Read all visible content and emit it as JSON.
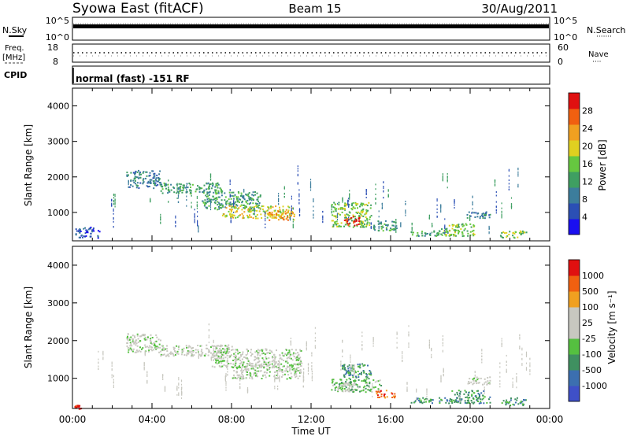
{
  "header": {
    "station": "Syowa East (fitACF)",
    "beam": "Beam 15",
    "date": "30/Aug/2011"
  },
  "small_panels": {
    "nsky_label": "N.Sky",
    "nsearch_label": "N.Search",
    "nsearch_dots": "·······",
    "nsky_ticks": [
      "10^5",
      "10^0"
    ],
    "nsearch_ticks": [
      "10^5",
      "10^0"
    ],
    "freq_label_1": "Freq.",
    "freq_label_2": "[MHz]",
    "freq_ticks": [
      "18",
      "8"
    ],
    "nave_label": "Nave",
    "nave_dots": "····",
    "nave_ticks": [
      "60",
      "0"
    ],
    "cpid_label": "CPID",
    "cpid_text": "normal (fast) -151 RF"
  },
  "chart_data": [
    {
      "type": "heatmap",
      "name": "power",
      "ylabel": "Slant Range [km]",
      "ylim": [
        200,
        4500
      ],
      "yticks": [
        "4000",
        "3000",
        "2000",
        "1000"
      ],
      "xlim_hours": [
        0,
        24
      ],
      "colorbar_label": "Power [dB]",
      "colorbar_ticks": [
        "28",
        "24",
        "20",
        "16",
        "12",
        "8",
        "4"
      ],
      "colors": [
        "#1a0ff0",
        "#2b4fb5",
        "#3c7d9c",
        "#3f9f62",
        "#66c840",
        "#e0d020",
        "#f0a020",
        "#f06010",
        "#e01010"
      ],
      "echo_regions": [
        {
          "t": [
            2.7,
            4.4
          ],
          "r": [
            1700,
            2200
          ],
          "level": 2
        },
        {
          "t": [
            4.4,
            7.5
          ],
          "r": [
            1550,
            1850
          ],
          "level": 3
        },
        {
          "t": [
            6.5,
            9.5
          ],
          "r": [
            1100,
            1600
          ],
          "level": 3
        },
        {
          "t": [
            7.5,
            11.0
          ],
          "r": [
            850,
            1200
          ],
          "level": 5
        },
        {
          "t": [
            9.8,
            11.2
          ],
          "r": [
            800,
            1050
          ],
          "level": 6
        },
        {
          "t": [
            13.0,
            15.0
          ],
          "r": [
            600,
            1300
          ],
          "level": 4
        },
        {
          "t": [
            13.6,
            14.4
          ],
          "r": [
            650,
            900
          ],
          "level": 8
        },
        {
          "t": [
            15.0,
            16.3
          ],
          "r": [
            500,
            800
          ],
          "level": 3
        },
        {
          "t": [
            17.0,
            19.0
          ],
          "r": [
            350,
            500
          ],
          "level": 3
        },
        {
          "t": [
            18.5,
            20.2
          ],
          "r": [
            350,
            700
          ],
          "level": 4
        },
        {
          "t": [
            19.8,
            21.0
          ],
          "r": [
            850,
            1050
          ],
          "level": 2
        },
        {
          "t": [
            21.5,
            22.8
          ],
          "r": [
            300,
            500
          ],
          "level": 4
        },
        {
          "t": [
            0.1,
            1.4
          ],
          "r": [
            300,
            600
          ],
          "level": 1
        }
      ]
    },
    {
      "type": "heatmap",
      "name": "velocity",
      "ylabel": "Slant Range [km]",
      "ylim": [
        200,
        4500
      ],
      "yticks": [
        "4000",
        "3000",
        "2000",
        "1000"
      ],
      "xlim_hours": [
        0,
        24
      ],
      "xticks": [
        "00:00",
        "04:00",
        "08:00",
        "12:00",
        "16:00",
        "20:00",
        "00:00"
      ],
      "xlabel": "Time UT",
      "colorbar_label": "Velocity [m s⁻¹]",
      "colorbar_ticks": [
        "1000",
        "500",
        "100",
        "25",
        "-25",
        "-100",
        "-500",
        "-1000"
      ],
      "colors": [
        "#3f50c8",
        "#3c6fb0",
        "#3f9060",
        "#55c040",
        "#c8c8c0",
        "#c8c8c0",
        "#f0a020",
        "#f06010",
        "#e01010"
      ],
      "echo_regions": [
        {
          "t": [
            2.7,
            4.4
          ],
          "r": [
            1700,
            2200
          ],
          "level": 4
        },
        {
          "t": [
            4.4,
            8.0
          ],
          "r": [
            1600,
            1900
          ],
          "level": 4
        },
        {
          "t": [
            7.0,
            11.5
          ],
          "r": [
            1300,
            1800
          ],
          "level": 4
        },
        {
          "t": [
            8.0,
            11.5
          ],
          "r": [
            1000,
            1400
          ],
          "level": 4
        },
        {
          "t": [
            13.5,
            15.0
          ],
          "r": [
            1000,
            1400
          ],
          "level": 2
        },
        {
          "t": [
            13.0,
            15.5
          ],
          "r": [
            650,
            1000
          ],
          "level": 3
        },
        {
          "t": [
            13.3,
            14.2
          ],
          "r": [
            650,
            900
          ],
          "level": 4
        },
        {
          "t": [
            15.2,
            16.2
          ],
          "r": [
            500,
            700
          ],
          "level": 7
        },
        {
          "t": [
            17.0,
            19.5
          ],
          "r": [
            350,
            500
          ],
          "level": 2
        },
        {
          "t": [
            19.0,
            21.0
          ],
          "r": [
            350,
            700
          ],
          "level": 2
        },
        {
          "t": [
            19.8,
            21.0
          ],
          "r": [
            850,
            1050
          ],
          "level": 4
        },
        {
          "t": [
            21.5,
            22.8
          ],
          "r": [
            300,
            500
          ],
          "level": 2
        },
        {
          "t": [
            0.1,
            0.4
          ],
          "r": [
            200,
            300
          ],
          "level": 8
        }
      ]
    }
  ]
}
